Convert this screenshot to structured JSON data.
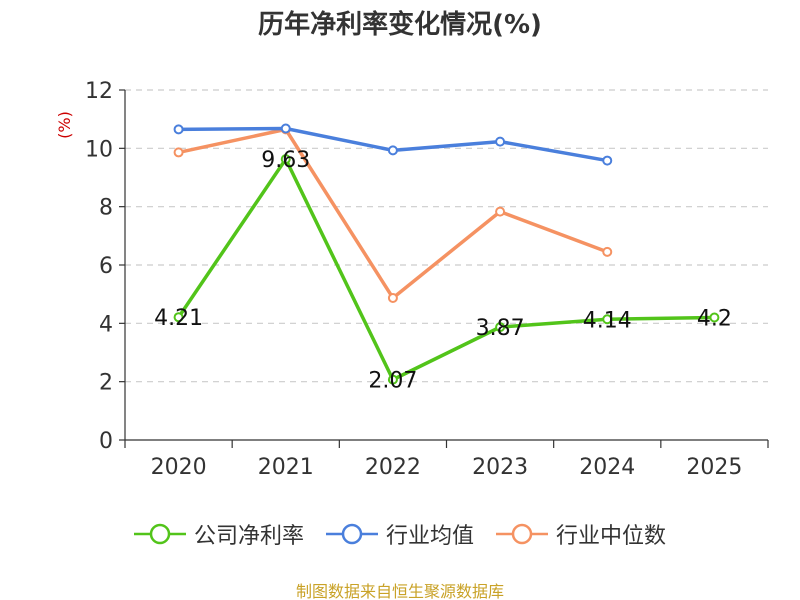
{
  "chart_data": {
    "type": "line",
    "title": "历年净利率变化情况(%)",
    "ylabel": "(%)",
    "xlabel": "",
    "categories": [
      "2020",
      "2021",
      "2022",
      "2023",
      "2024",
      "2025"
    ],
    "ylim": [
      0,
      12
    ],
    "yticks": [
      0,
      2,
      4,
      6,
      8,
      10,
      12
    ],
    "grid": true,
    "legend_position": "bottom",
    "series": [
      {
        "name": "公司净利率",
        "color": "#52c41a",
        "values": [
          4.21,
          9.63,
          2.07,
          3.87,
          4.14,
          4.2
        ],
        "labels": [
          "4.21",
          "9.63",
          "2.07",
          "3.87",
          "4.14",
          "4.2"
        ]
      },
      {
        "name": "行业均值",
        "color": "#4a7fdc",
        "values": [
          10.65,
          10.68,
          9.93,
          10.23,
          9.58,
          null
        ]
      },
      {
        "name": "行业中位数",
        "color": "#f59262",
        "values": [
          9.86,
          10.65,
          4.87,
          7.83,
          6.45,
          null
        ]
      }
    ]
  },
  "footer": {
    "source": "制图数据来自恒生聚源数据库"
  }
}
